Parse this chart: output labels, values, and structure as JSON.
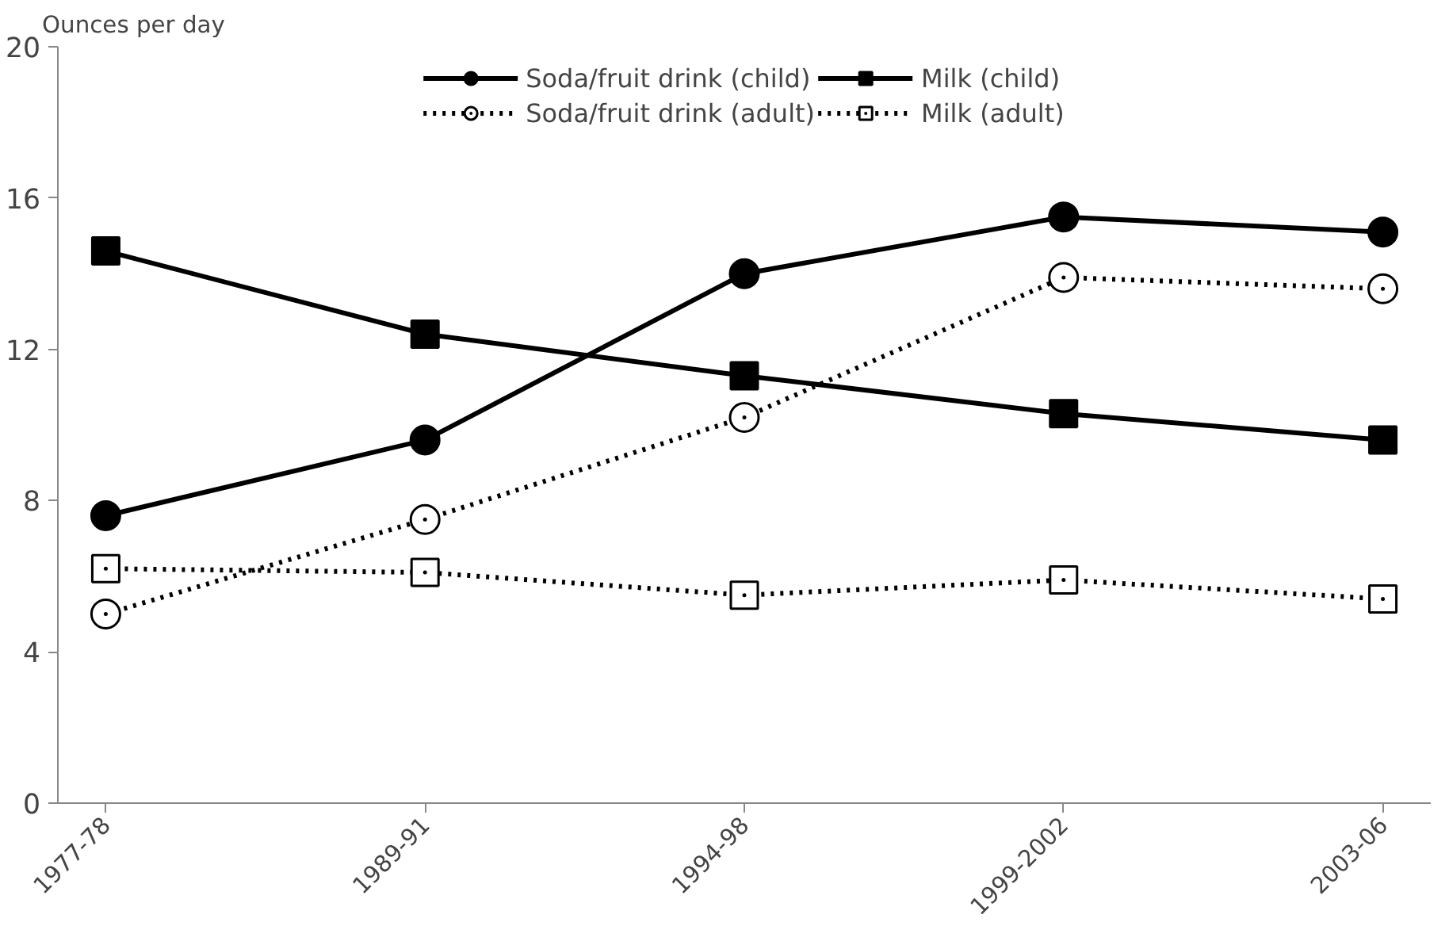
{
  "chart_data": {
    "type": "line",
    "ylabel": "Ounces per day",
    "categories": [
      "1977-78",
      "1989-91",
      "1994-98",
      "1999-2002",
      "2003-06"
    ],
    "ylim": [
      0,
      20
    ],
    "yticks": [
      0,
      4,
      8,
      12,
      16,
      20
    ],
    "grid": false,
    "legend": "top",
    "series": [
      {
        "name": "Soda/fruit drink (child)",
        "color": "#000000",
        "marker": "circle",
        "line_style": "solid",
        "values": [
          7.6,
          9.6,
          14.0,
          15.5,
          15.1
        ]
      },
      {
        "name": "Milk (child)",
        "color": "#000000",
        "marker": "square",
        "line_style": "solid",
        "values": [
          14.6,
          12.4,
          11.3,
          10.3,
          9.6
        ]
      },
      {
        "name": "Soda/fruit drink (adult)",
        "color": "#000000",
        "marker": "circle",
        "line_style": "dotted",
        "values": [
          5.0,
          7.5,
          10.2,
          13.9,
          13.6
        ]
      },
      {
        "name": "Milk (adult)",
        "color": "#000000",
        "marker": "square",
        "line_style": "dotted",
        "values": [
          6.2,
          6.1,
          5.5,
          5.9,
          5.4
        ]
      }
    ]
  }
}
